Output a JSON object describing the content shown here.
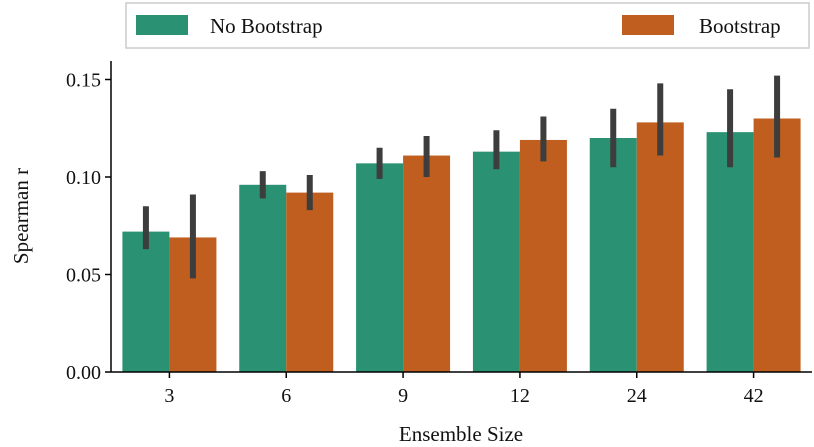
{
  "chart_data": {
    "type": "bar",
    "xlabel": "Ensemble Size",
    "ylabel": "Spearman r",
    "categories": [
      "3",
      "6",
      "9",
      "12",
      "24",
      "42"
    ],
    "ylim": [
      0,
      0.155
    ],
    "yticks": [
      0.0,
      0.05,
      0.1,
      0.15
    ],
    "ytick_labels": [
      "0.00",
      "0.05",
      "0.10",
      "0.15"
    ],
    "legend_position": "top",
    "series": [
      {
        "name": "No Bootstrap",
        "color": "#2a9172",
        "values": [
          0.072,
          0.096,
          0.107,
          0.113,
          0.12,
          0.123
        ],
        "err_low": [
          0.063,
          0.089,
          0.099,
          0.104,
          0.105,
          0.105
        ],
        "err_high": [
          0.085,
          0.103,
          0.115,
          0.124,
          0.135,
          0.145
        ]
      },
      {
        "name": "Bootstrap",
        "color": "#bf5e1f",
        "values": [
          0.069,
          0.092,
          0.111,
          0.119,
          0.128,
          0.13
        ],
        "err_low": [
          0.048,
          0.083,
          0.1,
          0.108,
          0.111,
          0.11
        ],
        "err_high": [
          0.091,
          0.101,
          0.121,
          0.131,
          0.148,
          0.152
        ]
      }
    ],
    "error_bar_color": "#3d3d3d"
  }
}
